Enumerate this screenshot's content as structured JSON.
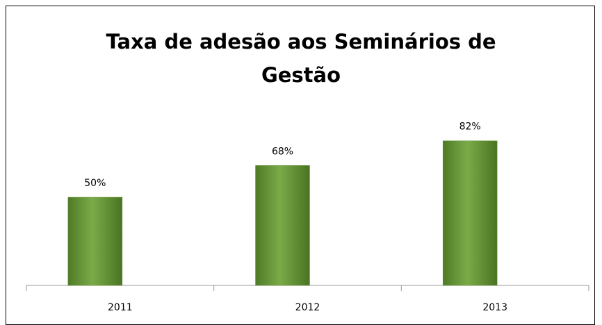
{
  "chart_data": {
    "type": "bar",
    "title": "Taxa de adesão aos Seminários de Gestão",
    "categories": [
      "2011",
      "2012",
      "2013"
    ],
    "values": [
      50,
      68,
      82
    ],
    "value_labels": [
      "50%",
      "68%",
      "82%"
    ],
    "color": "#6a9a3a",
    "ylim": [
      0,
      100
    ]
  }
}
